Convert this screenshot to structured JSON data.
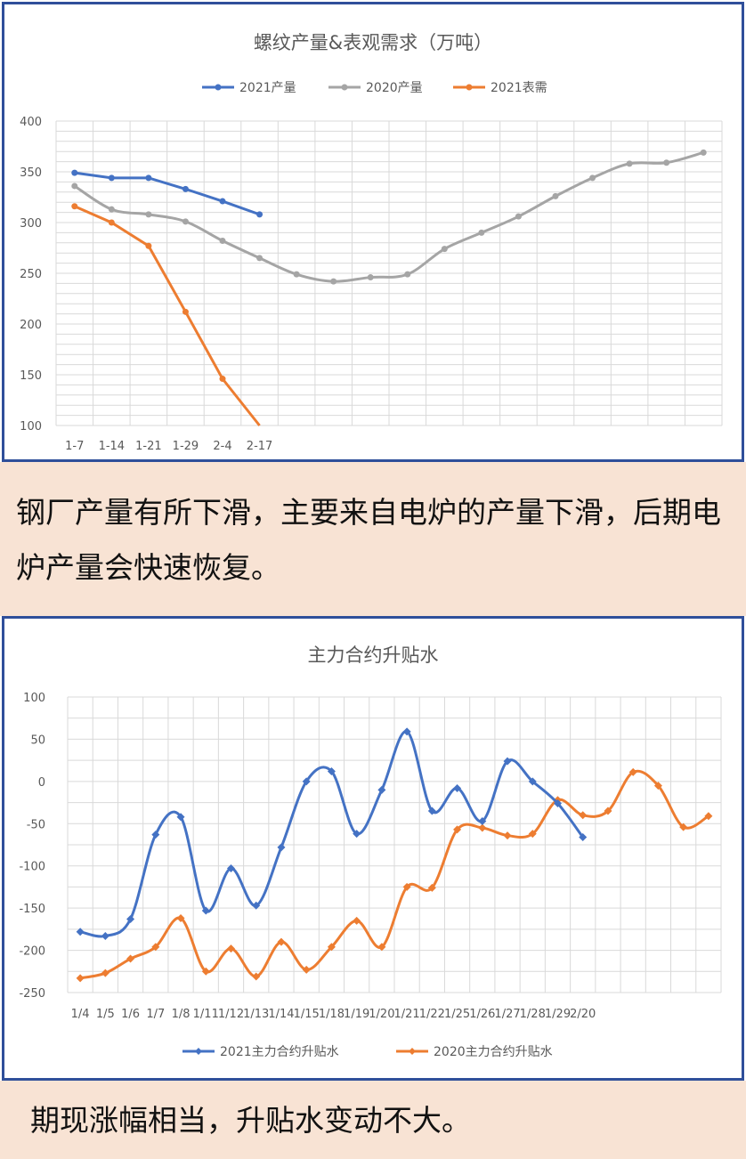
{
  "chart_data": [
    {
      "type": "line",
      "title": "螺纹产量&表观需求（万吨）",
      "categories": [
        "1-7",
        "1-14",
        "1-21",
        "1-29",
        "2-4",
        "2-17"
      ],
      "ylim": [
        100,
        400
      ],
      "yticks": [
        100,
        150,
        200,
        250,
        300,
        350,
        400
      ],
      "grid": true,
      "legend_position": "top",
      "series": [
        {
          "name": "2021产量",
          "color": "#4472c4",
          "x": [
            0,
            1,
            2,
            3,
            4,
            5
          ],
          "values": [
            349,
            344,
            344,
            333,
            321,
            308
          ]
        },
        {
          "name": "2020产量",
          "color": "#a5a5a5",
          "x": [
            0,
            1,
            2,
            3,
            4,
            5,
            6,
            7,
            8,
            9,
            10,
            11,
            12,
            13,
            14,
            15,
            16,
            17
          ],
          "values": [
            336,
            313,
            308,
            301,
            282,
            265,
            249,
            242,
            246,
            249,
            274,
            290,
            306,
            326,
            344,
            358,
            359,
            369
          ]
        },
        {
          "name": "2021表需",
          "color": "#ed7d31",
          "x": [
            0,
            1,
            2,
            3,
            4,
            5
          ],
          "values": [
            316,
            300,
            277,
            212,
            146,
            100
          ]
        }
      ]
    },
    {
      "type": "line",
      "title": "主力合约升贴水",
      "categories": [
        "1/4",
        "1/5",
        "1/6",
        "1/7",
        "1/8",
        "1/11",
        "1/12",
        "1/13",
        "1/14",
        "1/15",
        "1/18",
        "1/19",
        "1/20",
        "1/21",
        "1/22",
        "1/25",
        "1/26",
        "1/27",
        "1/28",
        "1/29",
        "2/20"
      ],
      "ylim": [
        -250,
        100
      ],
      "yticks": [
        -250,
        -200,
        -150,
        -100,
        -50,
        0,
        50,
        100
      ],
      "grid": true,
      "legend_position": "bottom",
      "series": [
        {
          "name": "2021主力合约升贴水",
          "color": "#4472c4",
          "x": [
            0,
            1,
            2,
            3,
            4,
            5,
            6,
            7,
            8,
            9,
            10,
            11,
            12,
            13,
            14,
            15,
            16,
            17,
            18,
            19,
            20
          ],
          "values": [
            -178,
            -183,
            -163,
            -63,
            -42,
            -153,
            -103,
            -147,
            -78,
            0,
            12,
            -62,
            -10,
            59,
            -35,
            -8,
            -47,
            24,
            0,
            -26,
            -66
          ]
        },
        {
          "name": "2020主力合约升贴水",
          "color": "#ed7d31",
          "x": [
            0,
            1,
            2,
            3,
            4,
            5,
            6,
            7,
            8,
            9,
            10,
            11,
            12,
            13,
            14,
            15,
            16,
            17,
            18,
            19,
            20,
            21,
            22,
            23,
            24,
            25
          ],
          "values": [
            -233,
            -227,
            -210,
            -196,
            -162,
            -225,
            -198,
            -231,
            -190,
            -223,
            -196,
            -165,
            -196,
            -125,
            -126,
            -57,
            -55,
            -64,
            -62,
            -22,
            -40,
            -35,
            11,
            -5,
            -54,
            -41
          ]
        }
      ]
    }
  ],
  "captions": {
    "caption1": "钢厂产量有所下滑，主要来自电炉的产量下滑，后期电炉产量会快速恢复。",
    "caption2": "期现涨幅相当，升贴水变动不大。"
  }
}
